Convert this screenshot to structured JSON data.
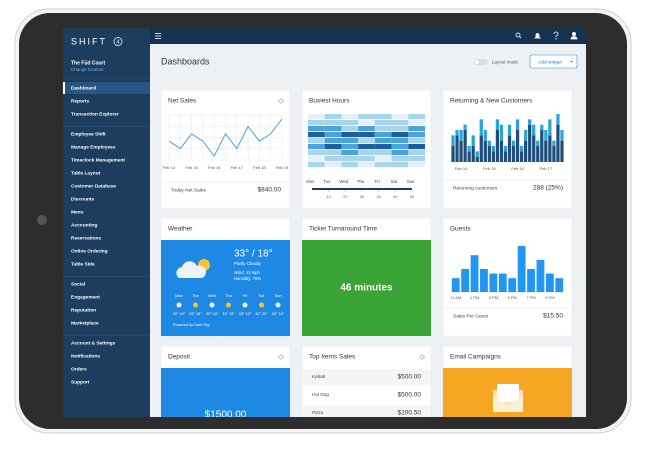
{
  "brand": {
    "name": "SHIFT",
    "badge": "4"
  },
  "location": {
    "name": "The Fūd Court",
    "action": "Change location"
  },
  "sidebar": {
    "groups": [
      [
        "Dashboard",
        "Reports",
        "Transaction Explorer"
      ],
      [
        "Employee Shift",
        "Manage Employees",
        "Timeclock Management",
        "Table Layout",
        "Customer Database",
        "Discounts",
        "Menu",
        "Accounting",
        "Reservations",
        "Online Ordering",
        "Table Side"
      ],
      [
        "Social",
        "Engagement",
        "Reputation",
        "Marketplace"
      ],
      [
        "Account & Settings",
        "Notifications",
        "Orders",
        "Support"
      ]
    ]
  },
  "header": {
    "title": "Dashboards",
    "layout_mode": "Layout mode",
    "add_widget": "Add widget"
  },
  "widgets": {
    "net_sales": {
      "title": "Net Sales",
      "chart": {
        "type": "line",
        "categories": [
          "Feb 14",
          null,
          "Feb 15",
          null,
          "Feb 16",
          null,
          "Feb 17",
          null,
          "Feb 18",
          null,
          "Feb 19"
        ],
        "values": [
          5,
          4,
          6,
          5,
          3,
          6,
          4,
          7,
          5,
          6,
          8
        ],
        "color": "#4a9fdc"
      },
      "footer_label": "Today Net Sales",
      "footer_value": "$840.00"
    },
    "busiest_hours": {
      "title": "Busiest Hours",
      "chart": {
        "type": "heatmap",
        "categories": [
          "Mon",
          "Tue",
          "Wed",
          "Thu",
          "Fri",
          "Sat",
          "Sun"
        ],
        "rows": [
          [
            0,
            1,
            0,
            1,
            1,
            0,
            1
          ],
          [
            1,
            1,
            1,
            0,
            1,
            1,
            0
          ],
          [
            2,
            2,
            1,
            2,
            1,
            1,
            2
          ],
          [
            3,
            2,
            3,
            3,
            2,
            3,
            2
          ],
          [
            1,
            2,
            2,
            1,
            2,
            2,
            1
          ],
          [
            2,
            3,
            2,
            3,
            3,
            2,
            3
          ],
          [
            1,
            1,
            2,
            1,
            1,
            2,
            1
          ],
          [
            0,
            1,
            1,
            1,
            0,
            1,
            1
          ],
          [
            1,
            0,
            1,
            0,
            1,
            1,
            0
          ]
        ],
        "colors": [
          "#e6eff7",
          "#a9d4ee",
          "#4aa3df",
          "#1d5e9c"
        ],
        "xlim": [
          0,
          60
        ],
        "xticks": [
          10,
          20,
          30,
          40,
          50,
          60
        ]
      }
    },
    "returning": {
      "title": "Returning & New Customers",
      "chart": {
        "type": "stacked-bar",
        "categories": [
          null,
          null,
          "Feb 14",
          null,
          null,
          null,
          null,
          null,
          null,
          "Feb 15",
          null,
          null,
          null,
          null,
          null,
          null,
          "Feb 16",
          null,
          null,
          null,
          null,
          null,
          null,
          "Feb 17",
          null,
          null,
          null,
          null
        ],
        "series": [
          {
            "color": "#1f4e79",
            "values": [
              3,
              5,
              4,
              6,
              2,
              3,
              1,
              5,
              4,
              3,
              2,
              6,
              4,
              2,
              5,
              3,
              6,
              2,
              4,
              7,
              5,
              3,
              6,
              4,
              5,
              3,
              7,
              4
            ]
          },
          {
            "color": "#29a3e0",
            "values": [
              2,
              1,
              2,
              1,
              1,
              2,
              1,
              3,
              2,
              1,
              1,
              2,
              3,
              1,
              2,
              1,
              2,
              1,
              2,
              1,
              2,
              1,
              1,
              2,
              3,
              1,
              2,
              2
            ]
          }
        ]
      },
      "footer_label": "Returning customers",
      "footer_value": "288 (25%)"
    },
    "weather": {
      "title": "Weather",
      "current": "33° / 18°",
      "condition": "Partly Cloudy",
      "wind": "Wind: 13 mph",
      "humidity": "Humidity: 75%",
      "days": [
        {
          "day": "Mon",
          "temps": "32° 19°"
        },
        {
          "day": "Tue",
          "temps": "33° 19°"
        },
        {
          "day": "Wed",
          "temps": "32° 18°"
        },
        {
          "day": "Thu",
          "temps": "33° 19°"
        },
        {
          "day": "Fri",
          "temps": "33° 19°"
        },
        {
          "day": "Sat",
          "temps": "32° 20°"
        },
        {
          "day": "Sun",
          "temps": "32° 19°"
        }
      ],
      "credit": "Powered by Dark Sky"
    },
    "ticket": {
      "title": "Ticket Turnaround Time",
      "value": "46 minutes"
    },
    "guests": {
      "title": "Guests",
      "chart": {
        "type": "bar",
        "categories": [
          "11 AM",
          null,
          "1 PM",
          null,
          "3 PM",
          null,
          "5 PM",
          null,
          "7 PM",
          null,
          "9 PM",
          null
        ],
        "values": [
          3,
          5,
          8,
          5,
          4,
          4,
          3,
          10,
          5,
          7,
          4,
          3
        ],
        "color": "#2196f3"
      },
      "footer_label": "Sales Per Guest",
      "footer_value": "$15.50"
    },
    "deposit": {
      "title": "Deposit",
      "value": "$1500.00"
    },
    "top_items": {
      "title": "Top Items Sales",
      "rows": [
        [
          "Kebab",
          "$500.00"
        ],
        [
          "Hot Dog",
          "$500.00"
        ],
        [
          "Pizza",
          "$200.50"
        ]
      ]
    },
    "email": {
      "title": "Email Campaigns"
    }
  }
}
